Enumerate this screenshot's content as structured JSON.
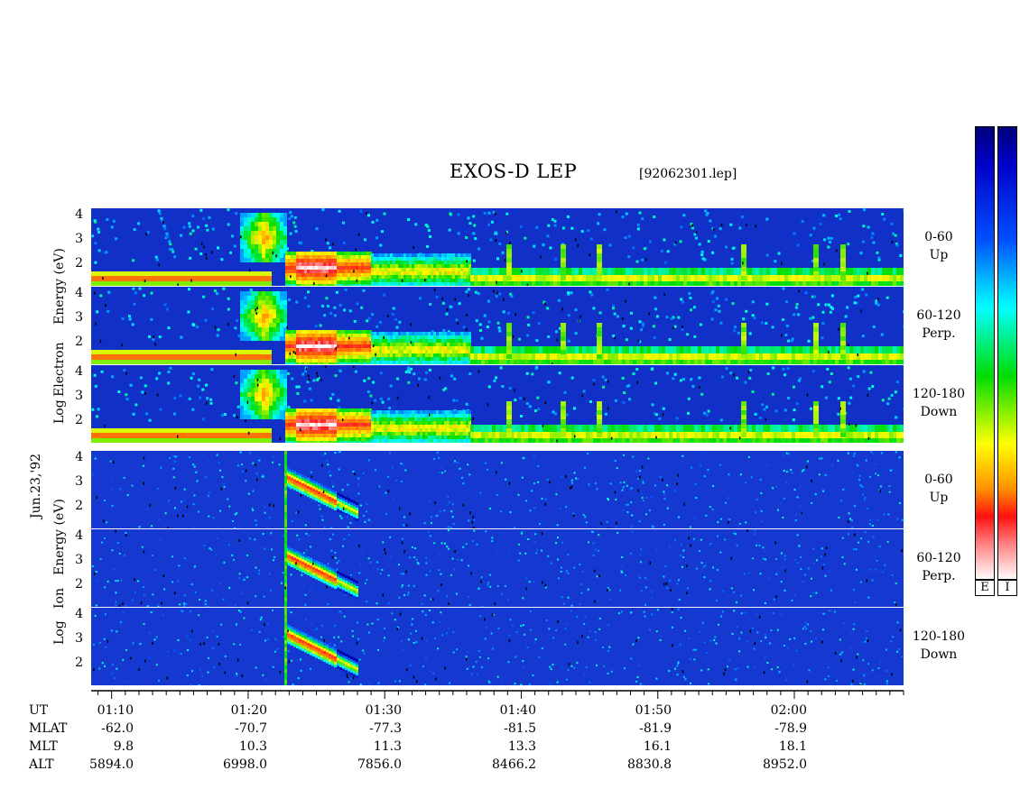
{
  "title": "EXOS-D LEP",
  "filename": "[92062301.lep]",
  "date_label": "Jun.23,'92",
  "electron_label": [
    "Log",
    "Electron",
    "Energy (eV)"
  ],
  "ion_label": [
    "Log",
    "Ion",
    "Energy (eV)"
  ],
  "panels": [
    {
      "id": "e-up",
      "species": "electron",
      "label1": "0-60",
      "label2": "Up"
    },
    {
      "id": "e-perp",
      "species": "electron",
      "label1": "60-120",
      "label2": "Perp."
    },
    {
      "id": "e-down",
      "species": "electron",
      "label1": "120-180",
      "label2": "Down"
    },
    {
      "id": "i-up",
      "species": "ion",
      "label1": "0-60",
      "label2": "Up"
    },
    {
      "id": "i-perp",
      "species": "ion",
      "label1": "60-120",
      "label2": "Perp."
    },
    {
      "id": "i-down",
      "species": "ion",
      "label1": "120-180",
      "label2": "Down"
    }
  ],
  "y_ticks": [
    "4",
    "3",
    "2"
  ],
  "colorbar_labels": [
    "E",
    "I"
  ],
  "axis_rows": {
    "labels": [
      "UT",
      "MLAT",
      "MLT",
      "ALT"
    ],
    "columns": [
      {
        "UT": "01:10",
        "MLAT": "-62.0",
        "MLT": "9.8",
        "ALT": "5894.0"
      },
      {
        "UT": "01:20",
        "MLAT": "-70.7",
        "MLT": "10.3",
        "ALT": "6998.0"
      },
      {
        "UT": "01:30",
        "MLAT": "-77.3",
        "MLT": "11.3",
        "ALT": "7856.0"
      },
      {
        "UT": "01:40",
        "MLAT": "-81.5",
        "MLT": "13.3",
        "ALT": "8466.2"
      },
      {
        "UT": "01:50",
        "MLAT": "-81.9",
        "MLT": "16.1",
        "ALT": "8830.8"
      },
      {
        "UT": "02:00",
        "MLAT": "-78.9",
        "MLT": "18.1",
        "ALT": "8952.0"
      }
    ]
  },
  "chart_data": {
    "type": "heatmap",
    "title": "EXOS-D LEP",
    "x_start_ut": "01:08.5",
    "x_end_ut": "02:08",
    "x_major_ticks": [
      "01:10",
      "01:20",
      "01:30",
      "01:40",
      "01:50",
      "02:00"
    ],
    "y_axis": "Log Energy (eV)",
    "y_range": [
      1,
      4.2
    ],
    "colormap": [
      "#ffffff",
      "#ff2020",
      "#ff9000",
      "#ffff00",
      "#00dd00",
      "#00ffff",
      "#0060ff",
      "#0000aa"
    ],
    "colors": {
      "background_low": "#1535d0",
      "hot": "#ffffff"
    }
  }
}
